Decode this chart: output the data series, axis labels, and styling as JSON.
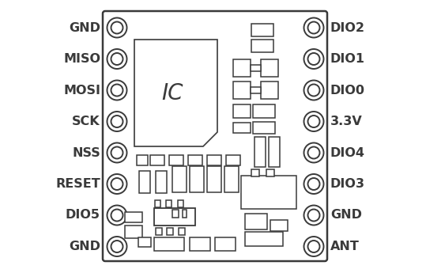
{
  "fig_width": 5.39,
  "fig_height": 3.45,
  "bg_color": "#ffffff",
  "left_pins": [
    "GND",
    "MISO",
    "MOSI",
    "SCK",
    "NSS",
    "RESET",
    "DIO5",
    "GND"
  ],
  "right_pins": [
    "DIO2",
    "DIO1",
    "DIO0",
    "3.3V",
    "DIO4",
    "DIO3",
    "GND",
    "ANT"
  ],
  "line_color": "#3a3a3a",
  "font_size": 11.5
}
